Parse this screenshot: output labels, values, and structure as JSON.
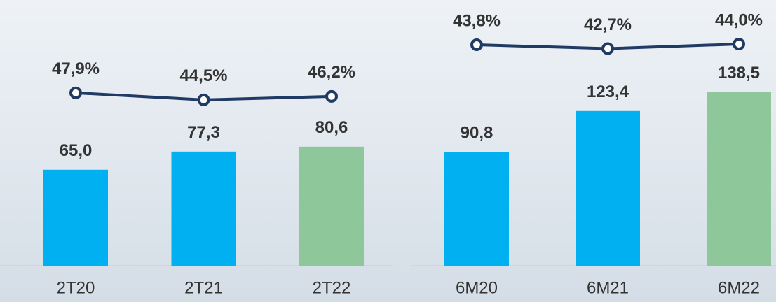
{
  "chart_data": [
    {
      "type": "bar",
      "categories": [
        "2T20",
        "2T21",
        "2T22"
      ],
      "ylim": [
        0,
        180
      ],
      "y2lim": [
        -36,
        93
      ],
      "series": [
        {
          "type": "bar",
          "values": [
            65.0,
            77.3,
            80.6
          ],
          "value_labels": [
            "65,0",
            "77,3",
            "80,6"
          ],
          "colors": [
            "#00b0f0",
            "#00b0f0",
            "#8ec79a"
          ]
        },
        {
          "type": "line",
          "axis": "y2",
          "values": [
            47.9,
            44.5,
            46.2
          ],
          "value_labels": [
            "47,9%",
            "44,5%",
            "46,2%"
          ],
          "color": "#1f3b63"
        }
      ]
    },
    {
      "type": "bar",
      "categories": [
        "6M20",
        "6M21",
        "6M22"
      ],
      "ylim": [
        0,
        212
      ],
      "y2lim": [
        -19.4,
        56.6
      ],
      "series": [
        {
          "type": "bar",
          "values": [
            90.8,
            123.4,
            138.5
          ],
          "value_labels": [
            "90,8",
            "123,4",
            "138,5"
          ],
          "colors": [
            "#00b0f0",
            "#00b0f0",
            "#8ec79a"
          ]
        },
        {
          "type": "line",
          "axis": "y2",
          "values": [
            43.8,
            42.7,
            44.0
          ],
          "value_labels": [
            "43,8%",
            "42,7%",
            "44,0%"
          ],
          "color": "#1f3b63"
        }
      ]
    }
  ]
}
